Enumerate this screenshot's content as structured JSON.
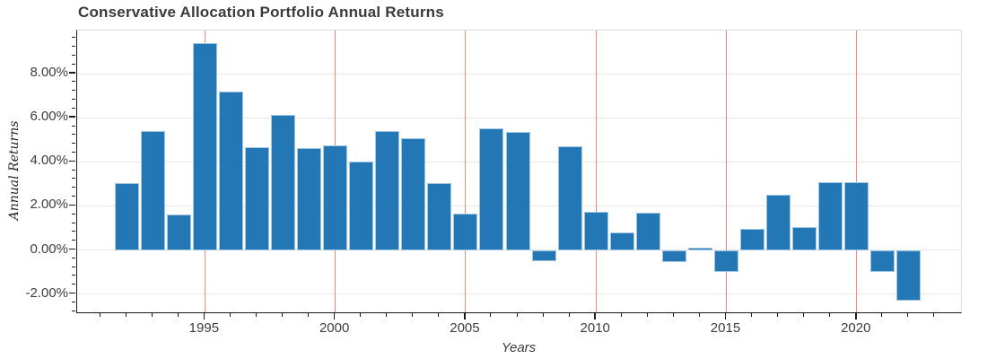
{
  "chart_data": {
    "type": "bar",
    "title": "Conservative Allocation Portfolio Annual Returns",
    "xlabel": "Years",
    "ylabel": "Annual Returns",
    "categories": [
      1992,
      1993,
      1994,
      1995,
      1996,
      1997,
      1998,
      1999,
      2000,
      2001,
      2002,
      2003,
      2004,
      2005,
      2006,
      2007,
      2008,
      2009,
      2010,
      2011,
      2012,
      2013,
      2014,
      2015,
      2016,
      2017,
      2018,
      2019,
      2020,
      2021,
      2022
    ],
    "values": [
      3.05,
      5.38,
      1.62,
      9.37,
      7.17,
      4.66,
      6.12,
      4.61,
      4.74,
      4.01,
      5.41,
      5.08,
      3.04,
      1.65,
      5.52,
      5.37,
      -0.52,
      4.7,
      1.72,
      0.81,
      1.68,
      -0.53,
      0.09,
      -1.0,
      0.95,
      2.49,
      1.03,
      3.09,
      3.07,
      -1.0,
      -2.32
    ],
    "ylim": [
      -2.83,
      9.96
    ],
    "xlim": [
      1990.1,
      2024.0
    ],
    "yticks": [
      8,
      6,
      4,
      2,
      0,
      -2
    ],
    "ytick_labels": [
      "8.00%",
      "6.00%",
      "4.00%",
      "2.00%",
      "0.00%",
      "-2.00%"
    ],
    "xticks": [
      1995,
      2000,
      2005,
      2010,
      2015,
      2020
    ],
    "xtick_labels": [
      "1995",
      "2000",
      "2005",
      "2010",
      "2015",
      "2020"
    ],
    "y_minor_step": 0.4,
    "x_minor_step": 1,
    "grid": "both",
    "legend": "none",
    "bar_color": "#2277b4",
    "bar_edge_color": "#a3c7e3",
    "x_grid_color": "#f4867c",
    "y_grid_color": "#e7e7e7",
    "tick_label_color": "#3d3d3d",
    "title_color": "#3a3a3a"
  }
}
